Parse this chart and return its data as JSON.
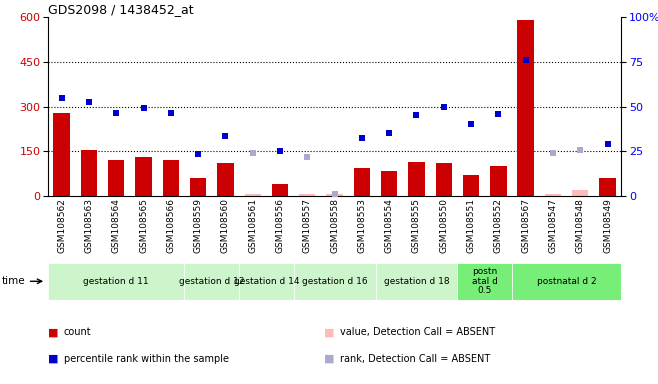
{
  "title": "GDS2098 / 1438452_at",
  "samples": [
    "GSM108562",
    "GSM108563",
    "GSM108564",
    "GSM108565",
    "GSM108566",
    "GSM108559",
    "GSM108560",
    "GSM108561",
    "GSM108556",
    "GSM108557",
    "GSM108558",
    "GSM108553",
    "GSM108554",
    "GSM108555",
    "GSM108550",
    "GSM108551",
    "GSM108552",
    "GSM108567",
    "GSM108547",
    "GSM108548",
    "GSM108549"
  ],
  "count_values": [
    280,
    155,
    120,
    130,
    120,
    60,
    110,
    5,
    40,
    5,
    5,
    95,
    85,
    115,
    110,
    70,
    100,
    590,
    5,
    20,
    60
  ],
  "count_absent": [
    false,
    false,
    false,
    false,
    false,
    false,
    false,
    true,
    false,
    true,
    true,
    false,
    false,
    false,
    false,
    false,
    false,
    false,
    true,
    true,
    false
  ],
  "rank_values": [
    330,
    315,
    280,
    295,
    280,
    140,
    200,
    145,
    150,
    130,
    5,
    195,
    210,
    270,
    300,
    240,
    275,
    455,
    145,
    155,
    175
  ],
  "rank_absent": [
    false,
    false,
    false,
    false,
    false,
    false,
    false,
    true,
    false,
    true,
    true,
    false,
    false,
    false,
    false,
    false,
    false,
    false,
    true,
    true,
    false
  ],
  "groups": [
    {
      "label": "gestation d 11",
      "start": 0,
      "end": 5,
      "light": true
    },
    {
      "label": "gestation d 12",
      "start": 5,
      "end": 7,
      "light": true
    },
    {
      "label": "gestation d 14",
      "start": 7,
      "end": 9,
      "light": true
    },
    {
      "label": "gestation d 16",
      "start": 9,
      "end": 12,
      "light": true
    },
    {
      "label": "gestation d 18",
      "start": 12,
      "end": 15,
      "light": true
    },
    {
      "label": "postn\natal d\n0.5",
      "start": 15,
      "end": 17,
      "light": false
    },
    {
      "label": "postnatal d 2",
      "start": 17,
      "end": 21,
      "light": false
    }
  ],
  "group_color_light": "#ccf5cc",
  "group_color_dark": "#77ee77",
  "ylim_left": [
    0,
    600
  ],
  "ylim_right": [
    0,
    100
  ],
  "yticks_left": [
    0,
    150,
    300,
    450,
    600
  ],
  "yticks_right": [
    0,
    25,
    50,
    75,
    100
  ],
  "dotted_lines": [
    150,
    300,
    450
  ],
  "bar_color": "#cc0000",
  "bar_absent_color": "#ffbbbb",
  "rank_color": "#0000cc",
  "rank_absent_color": "#aaaacc",
  "xtick_bg": "#cccccc",
  "legend_items": [
    {
      "label": "count",
      "color": "#cc0000"
    },
    {
      "label": "percentile rank within the sample",
      "color": "#0000cc"
    },
    {
      "label": "value, Detection Call = ABSENT",
      "color": "#ffbbbb"
    },
    {
      "label": "rank, Detection Call = ABSENT",
      "color": "#aaaacc"
    }
  ]
}
